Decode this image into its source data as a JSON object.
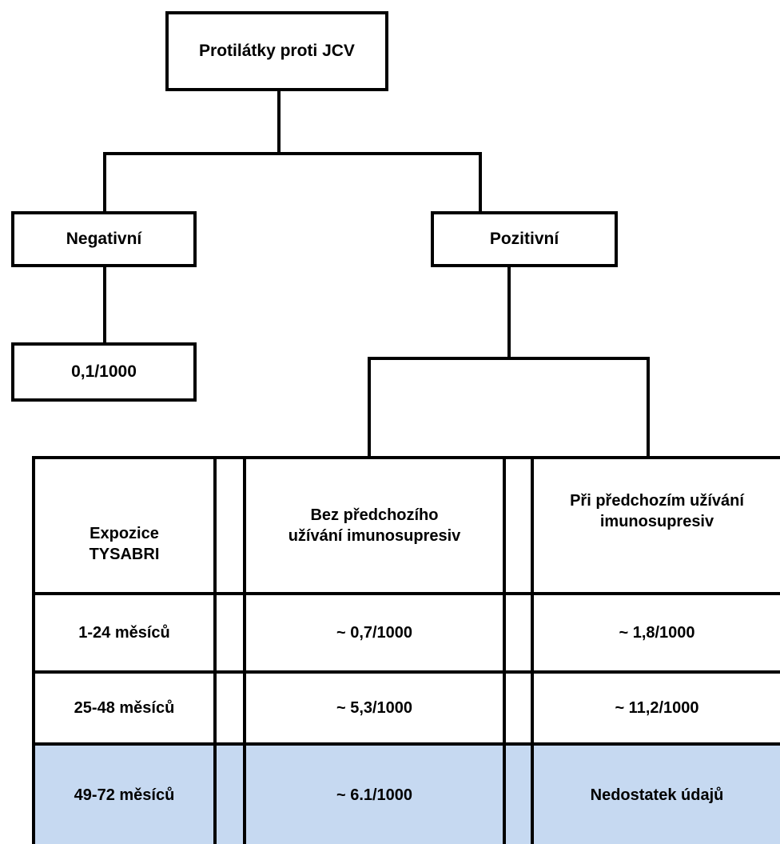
{
  "root": "Protilátky proti JCV",
  "negative": {
    "label": "Negativní",
    "value": "0,1/1000"
  },
  "positive": {
    "label": "Pozitivní"
  },
  "table": {
    "headers": [
      "Expozice TYSABRI",
      "Bez předchozího užívání imunosupresiv",
      "Při předchozím užívání imunosupresiv"
    ],
    "rows": [
      {
        "exposure": "1-24 měsíců",
        "without": "~ 0,7/1000",
        "with": "~ 1,8/1000"
      },
      {
        "exposure": "25-48 měsíců",
        "without": "~ 5,3/1000",
        "with": "~ 11,2/1000"
      },
      {
        "exposure": "49-72 měsíců",
        "without": "~ 6.1/1000",
        "with": "Nedostatek údajů"
      }
    ],
    "highlight_color": "#c6d9f1"
  }
}
